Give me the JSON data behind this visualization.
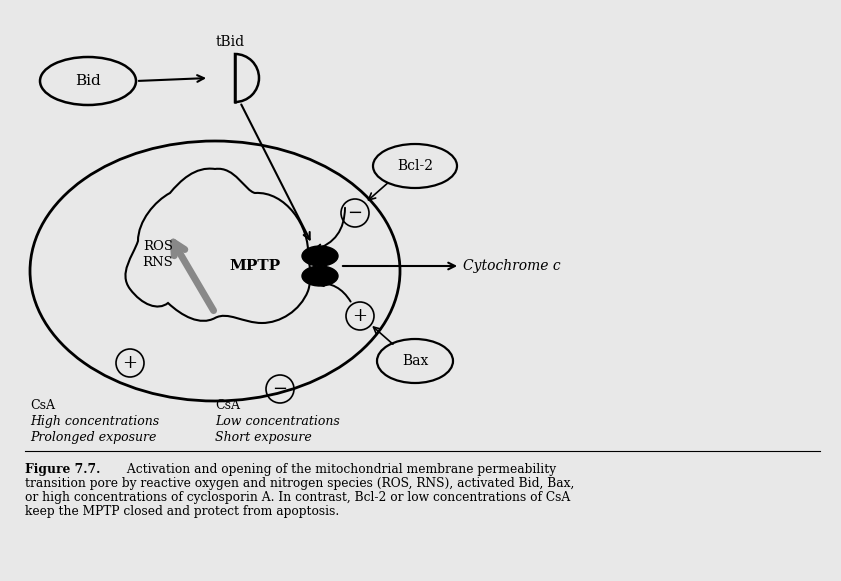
{
  "bg_color": "#e8e8e8",
  "fig_width": 8.41,
  "fig_height": 5.81,
  "caption_bold": "Figure 7.7.",
  "caption_line1": " Activation and opening of the mitochondrial membrane permeability",
  "caption_line2": "transition pore by reactive oxygen and nitrogen species (ROS, RNS), activated Bid, Bax,",
  "caption_line3": "or high concentrations of cyclosporin A. In contrast, Bcl-2 or low concentrations of CsA",
  "caption_line4": "keep the MPTP closed and protect from apoptosis.",
  "label_bid": "Bid",
  "label_tbid": "tBid",
  "label_bcl2": "Bcl-2",
  "label_bax": "Bax",
  "label_mptp": "MPTP",
  "label_ros": "ROS",
  "label_rns": "RNS",
  "label_cytc_italic": "Cytochrome c",
  "label_csa_left1": "CsA",
  "label_csa_left2": "High concentrations",
  "label_csa_left3": "Prolonged exposure",
  "label_csa_right1": "CsA",
  "label_csa_right2": "Low concentrations",
  "label_csa_right3": "Short exposure",
  "minus_sign": "−",
  "plus_sign": "+"
}
